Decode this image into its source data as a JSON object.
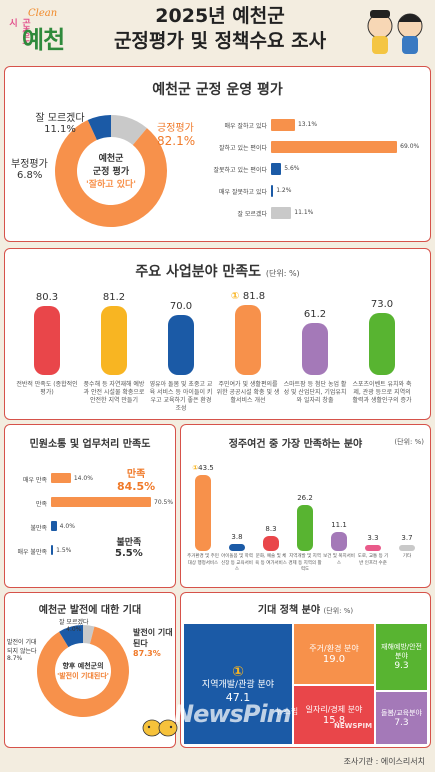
{
  "header": {
    "logo_top": "곤충도시",
    "logo_brand": "Clean",
    "logo_main": "예천",
    "title_line1": "2025년 예천군",
    "title_line2": "군정평가 및 정책수요 조사"
  },
  "footer": {
    "source_label": "조사기관 : 에이스리서치",
    "watermark": "NewsPim",
    "watermark_ko": "뉴스핌",
    "watermark_small": "NEWSPIM"
  },
  "colors": {
    "border": "#d6524a",
    "orange": "#f7914b",
    "blue": "#1b5aa6",
    "gray": "#c9c9c9",
    "red": "#e9464a",
    "yellow": "#f8b522",
    "purple": "#a479b8",
    "green": "#58b431",
    "pink": "#e95a8a",
    "cream": "#f3ede0"
  },
  "section1": {
    "title": "예천군 군정 운영 평가",
    "donut_center_line1": "예천군",
    "donut_center_line2": "군정 평가",
    "donut_center_line3": "'잘하고 있다'",
    "labels": {
      "good_name": "긍정평가",
      "good_value": "82.1%",
      "bad_name": "부정평가",
      "bad_value": "6.8%",
      "dk_name": "잘 모르겠다",
      "dk_value": "11.1%"
    }
  },
  "section2": {
    "title": "주요 사업분야 만족도",
    "unit": "(단위: %)",
    "rank_mark": "①"
  },
  "section3": {
    "title": "민원소통 및 업무처리 만족도",
    "callout_good_name": "만족",
    "callout_good_value": "84.5%",
    "callout_bad_name": "불만족",
    "callout_bad_value": "5.5%"
  },
  "section4": {
    "title": "정주여건 중 가장 만족하는 분야",
    "unit": "(단위: %)",
    "rank_mark": "①"
  },
  "section5": {
    "title": "예천군 발전에 대한 기대",
    "center_line1": "향후 예천군의",
    "center_line2": "'발전이 기대된다'",
    "labels": {
      "exp_name": "발전이 기대된다",
      "exp_value": "87.3%",
      "noexp_name": "발전이 기대되지 않는다",
      "noexp_value": "8.7%",
      "dk_name": "잘 모르겠다",
      "dk_value": "4.0%"
    }
  },
  "section6": {
    "title": "기대 정책 분야",
    "unit": "(단위: %)",
    "rank_mark": "①"
  },
  "chart_data": [
    {
      "type": "pie",
      "title": "예천군 군정 운영 평가",
      "categories": [
        "긍정평가",
        "부정평가",
        "잘 모르겠다"
      ],
      "values": [
        82.1,
        6.8,
        11.1
      ]
    },
    {
      "type": "bar",
      "title": "예천군 군정 운영 평가",
      "orientation": "horizontal",
      "categories": [
        "매우 잘하고 있다",
        "잘하고 있는 편이다",
        "잘못하고 있는 편이다",
        "매우 잘못하고 있다",
        "잘 모르겠다"
      ],
      "values": [
        13.1,
        69.0,
        5.6,
        1.2,
        11.1
      ],
      "value_labels": [
        "13.1%",
        "69.0%",
        "5.6%",
        "1.2%",
        "11.1%"
      ]
    },
    {
      "type": "bar",
      "title": "주요 사업분야 만족도",
      "unit": "(단위: %)",
      "categories": [
        "전반적 만족도 (종합적인 평가)",
        "풍수해 등 자연재해 예방과 안전 시설물 확충으로 안전한 지역 만들기",
        "영유아 돌봄 및 초중고 교육 서비스 등 아이들이 키우고 교육하기 좋은 환경 조성",
        "주민여가 및 생활편의를 위한 공공시설 확충 및 생활서비스 개선",
        "스마트팜 등 첨단 농업 활성 및 산업단지, 기업유치와 일자리 창출",
        "스포츠이벤트 유치와 축제, 관광 등으로 지역의 활력과 생활인구의 증가"
      ],
      "values": [
        80.3,
        81.2,
        70.0,
        81.8,
        61.2,
        73.0
      ]
    },
    {
      "type": "bar",
      "title": "민원소통 및 업무처리 만족도",
      "orientation": "horizontal",
      "categories": [
        "매우 만족",
        "만족",
        "불만족",
        "매우 불만족"
      ],
      "values": [
        14.0,
        70.5,
        4.0,
        1.5
      ],
      "value_labels": [
        "14.0%",
        "70.5%",
        "4.0%",
        "1.5%"
      ]
    },
    {
      "type": "bar",
      "title": "정주여건 중 가장 만족하는 분야",
      "unit": "(단위: %)",
      "categories": [
        "주거환경 및 주민 대상 행정서비스",
        "아이돌봄 및 학력 신장 등 교육서비스",
        "문화, 예술 및 체육 등 여가서비스",
        "지역개발 및 지역경제 등 지역의 활력도",
        "보건 및 복지서비스",
        "도로, 교통 등 기반 인프라 수준",
        "기타"
      ],
      "values": [
        43.5,
        3.8,
        8.3,
        26.2,
        11.1,
        3.3,
        3.7
      ]
    },
    {
      "type": "pie",
      "title": "예천군 발전에 대한 기대",
      "categories": [
        "발전이 기대된다",
        "발전이 기대되지 않는다",
        "잘 모르겠다"
      ],
      "values": [
        87.3,
        8.7,
        4.0
      ]
    },
    {
      "type": "heatmap",
      "title": "기대 정책 분야",
      "unit": "(단위: %)",
      "categories": [
        "지역개발/관광 분야",
        "주거/환경 분야",
        "일자리/경제 분야",
        "재해예방/안전분야",
        "돌봄/교육분야"
      ],
      "values": [
        47.1,
        19.0,
        15.8,
        9.3,
        7.3
      ]
    }
  ]
}
